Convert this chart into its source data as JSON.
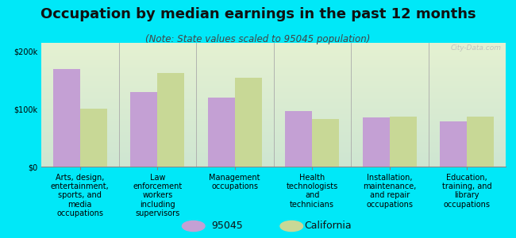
{
  "title": "Occupation by median earnings in the past 12 months",
  "subtitle": "(Note: State values scaled to 95045 population)",
  "background_color": "#00e8f8",
  "plot_bg_gradient_top": "#f0f5e0",
  "plot_bg_gradient_bottom": "#e0f0e8",
  "categories": [
    "Arts, design,\nentertainment,\nsports, and\nmedia\noccupations",
    "Law\nenforcement\nworkers\nincluding\nsupervisors",
    "Management\noccupations",
    "Health\ntechnologists\nand\ntechnicians",
    "Installation,\nmaintenance,\nand repair\noccupations",
    "Education,\ntraining, and\nlibrary\noccupations"
  ],
  "values_95045": [
    170000,
    130000,
    120000,
    97000,
    85000,
    78000
  ],
  "values_california": [
    100000,
    162000,
    155000,
    83000,
    87000,
    87000
  ],
  "color_95045": "#c4a0d4",
  "color_california": "#c8d896",
  "ylim": [
    0,
    215000
  ],
  "yticks": [
    0,
    100000,
    200000
  ],
  "ytick_labels": [
    "$0",
    "$100k",
    "$200k"
  ],
  "bar_width": 0.35,
  "watermark": "City-Data.com",
  "legend_labels": [
    "95045",
    "California"
  ],
  "title_fontsize": 13,
  "subtitle_fontsize": 8.5,
  "tick_fontsize": 7,
  "legend_fontsize": 9
}
